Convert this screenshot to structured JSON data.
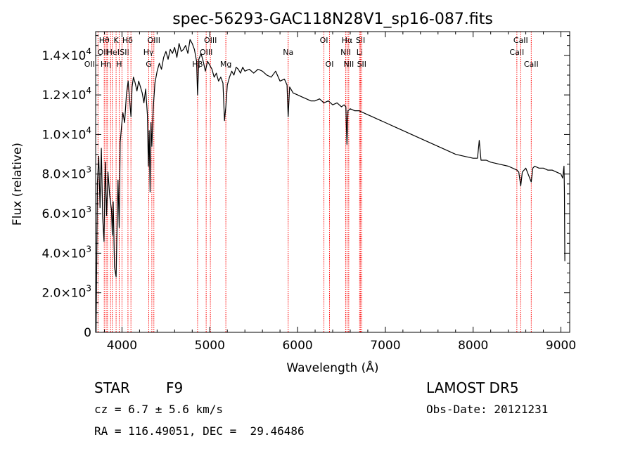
{
  "chart_data": {
    "type": "line",
    "title": "spec-56293-GAC118N28V1_sp16-087.fits",
    "xlabel": "Wavelength (Å)",
    "ylabel": "Flux (relative)",
    "xlim": [
      3700,
      9100
    ],
    "ylim": [
      0,
      15200
    ],
    "xticks": [
      {
        "value": 4000,
        "label": "4000"
      },
      {
        "value": 5000,
        "label": "5000"
      },
      {
        "value": 6000,
        "label": "6000"
      },
      {
        "value": 7000,
        "label": "7000"
      },
      {
        "value": 8000,
        "label": "8000"
      },
      {
        "value": 9000,
        "label": "9000"
      }
    ],
    "yticks": [
      {
        "value": 0,
        "mantissa": "0",
        "exponent": ""
      },
      {
        "value": 2000,
        "mantissa": "2.0×10",
        "exponent": "3"
      },
      {
        "value": 4000,
        "mantissa": "4.0×10",
        "exponent": "3"
      },
      {
        "value": 6000,
        "mantissa": "6.0×10",
        "exponent": "3"
      },
      {
        "value": 8000,
        "mantissa": "8.0×10",
        "exponent": "3"
      },
      {
        "value": 10000,
        "mantissa": "1.0×10",
        "exponent": "4"
      },
      {
        "value": 12000,
        "mantissa": "1.2×10",
        "exponent": "4"
      },
      {
        "value": 14000,
        "mantissa": "1.4×10",
        "exponent": "4"
      }
    ],
    "line_color": "#ff0000",
    "spectrum_color": "#000000",
    "grid": false,
    "series": [
      {
        "x": [
          3705,
          3712,
          3720,
          3735,
          3750,
          3765,
          3780,
          3795,
          3810,
          3825,
          3840,
          3860,
          3880,
          3890,
          3900,
          3915,
          3933,
          3945,
          3955,
          3968,
          3980,
          3995,
          4010,
          4030,
          4050,
          4070,
          4090,
          4102,
          4115,
          4130,
          4150,
          4170,
          4190,
          4210,
          4230,
          4250,
          4270,
          4290,
          4300,
          4310,
          4320,
          4330,
          4340,
          4355,
          4375,
          4400,
          4425,
          4450,
          4475,
          4500,
          4525,
          4550,
          4575,
          4600,
          4625,
          4650,
          4675,
          4700,
          4725,
          4750,
          4775,
          4800,
          4825,
          4850,
          4861,
          4875,
          4900,
          4925,
          4950,
          4975,
          5000,
          5025,
          5050,
          5075,
          5100,
          5125,
          5150,
          5168,
          5183,
          5200,
          5225,
          5250,
          5275,
          5300,
          5325,
          5350,
          5375,
          5400,
          5450,
          5500,
          5550,
          5600,
          5650,
          5700,
          5750,
          5800,
          5850,
          5880,
          5893,
          5910,
          5950,
          6000,
          6050,
          6100,
          6150,
          6200,
          6250,
          6300,
          6350,
          6400,
          6450,
          6500,
          6530,
          6550,
          6563,
          6575,
          6600,
          6650,
          6700,
          6750,
          6800,
          6850,
          6900,
          6950,
          7000,
          7100,
          7200,
          7300,
          7400,
          7500,
          7600,
          7700,
          7800,
          7900,
          8000,
          8050,
          8070,
          8090,
          8150,
          8200,
          8300,
          8400,
          8450,
          8498,
          8520,
          8542,
          8560,
          8600,
          8662,
          8680,
          8700,
          8750,
          8800,
          8850,
          8900,
          8950,
          9000,
          9020,
          9035,
          9040,
          9045
        ],
        "y": [
          0,
          3500,
          7600,
          8900,
          6300,
          9300,
          5800,
          4600,
          8600,
          5900,
          8100,
          6900,
          6200,
          4900,
          6600,
          3300,
          2800,
          5600,
          7700,
          5300,
          9600,
          10400,
          11100,
          10600,
          12000,
          12700,
          11600,
          10900,
          12400,
          12900,
          12600,
          12200,
          12700,
          12400,
          12100,
          11600,
          12300,
          11000,
          8400,
          10200,
          7100,
          10600,
          9400,
          11300,
          12600,
          13200,
          13600,
          13300,
          13900,
          14200,
          13800,
          14300,
          14100,
          14400,
          13900,
          14600,
          14200,
          14300,
          14500,
          14100,
          14800,
          14600,
          14300,
          13700,
          12000,
          13800,
          14100,
          13700,
          13200,
          13700,
          13500,
          13300,
          12900,
          13100,
          12700,
          12900,
          12600,
          10700,
          11400,
          12500,
          12900,
          13200,
          13000,
          13400,
          13300,
          13100,
          13400,
          13200,
          13300,
          13100,
          13300,
          13200,
          13000,
          12900,
          13200,
          12700,
          12800,
          12500,
          10900,
          12400,
          12100,
          12000,
          11900,
          11800,
          11700,
          11700,
          11800,
          11600,
          11700,
          11500,
          11600,
          11400,
          11500,
          11400,
          9500,
          11200,
          11300,
          11200,
          11200,
          11100,
          11000,
          10900,
          10800,
          10700,
          10600,
          10400,
          10200,
          10000,
          9800,
          9600,
          9400,
          9200,
          9000,
          8900,
          8800,
          8800,
          9700,
          8700,
          8700,
          8600,
          8500,
          8400,
          8300,
          8200,
          8100,
          7400,
          8100,
          8300,
          7600,
          8300,
          8400,
          8300,
          8300,
          8200,
          8200,
          8100,
          8000,
          7800,
          8400,
          7100,
          3600
        ]
      }
    ],
    "spectral_lines": [
      {
        "x": 3727,
        "label": "OII",
        "row": 2,
        "offset": -1
      },
      {
        "x": 3798,
        "label": "Hθ",
        "row": 0,
        "offset": 0
      },
      {
        "x": 3820,
        "label": "OII",
        "row": 1,
        "offset": -0.4
      },
      {
        "x": 3835,
        "label": "Hη",
        "row": 2,
        "offset": -0.2
      },
      {
        "x": 3870,
        "label": "HeI",
        "row": 1,
        "offset": 0.3
      },
      {
        "x": 3889,
        "label": "",
        "row": 0,
        "offset": 0
      },
      {
        "x": 3933,
        "label": "K",
        "row": 0,
        "offset": 0
      },
      {
        "x": 3968,
        "label": "H",
        "row": 2,
        "offset": 0
      },
      {
        "x": 4000,
        "label": "SII",
        "row": 1,
        "offset": 0.3
      },
      {
        "x": 4068,
        "label": "",
        "row": 0,
        "offset": 0
      },
      {
        "x": 4102,
        "label": "Hδ",
        "row": 0,
        "offset": -0.4
      },
      {
        "x": 4305,
        "label": "G",
        "row": 2,
        "offset": 0
      },
      {
        "x": 4340,
        "label": "Hγ",
        "row": 1,
        "offset": -0.4
      },
      {
        "x": 4363,
        "label": "OIII",
        "row": 0,
        "offset": 0
      },
      {
        "x": 4861,
        "label": "Hβ",
        "row": 2,
        "offset": 0
      },
      {
        "x": 4959,
        "label": "OIII",
        "row": 1,
        "offset": 0
      },
      {
        "x": 5007,
        "label": "OIII",
        "row": 0,
        "offset": 0
      },
      {
        "x": 5183,
        "label": "Mg",
        "row": 2,
        "offset": 0
      },
      {
        "x": 5893,
        "label": "Na",
        "row": 1,
        "offset": 0
      },
      {
        "x": 6300,
        "label": "OI",
        "row": 0,
        "offset": 0
      },
      {
        "x": 6364,
        "label": "OI",
        "row": 2,
        "offset": 0
      },
      {
        "x": 6548,
        "label": "NII",
        "row": 1,
        "offset": 0
      },
      {
        "x": 6563,
        "label": "Hα",
        "row": 0,
        "offset": 0
      },
      {
        "x": 6583,
        "label": "NII",
        "row": 2,
        "offset": 0
      },
      {
        "x": 6707,
        "label": "Li",
        "row": 1,
        "offset": 0
      },
      {
        "x": 6717,
        "label": "SII",
        "row": 0,
        "offset": 0
      },
      {
        "x": 6731,
        "label": "SII",
        "row": 2,
        "offset": 0
      },
      {
        "x": 8498,
        "label": "CaII",
        "row": 1,
        "offset": 0
      },
      {
        "x": 8542,
        "label": "CaII",
        "row": 0,
        "offset": 0
      },
      {
        "x": 8662,
        "label": "CaII",
        "row": 2,
        "offset": 0
      }
    ]
  },
  "info": {
    "object_type": "STAR",
    "subclass": "F9",
    "survey": "LAMOST DR5",
    "redshift": "cz = 6.7 ± 5.6 km/s",
    "obs_date": "Obs-Date: 20121231",
    "coords": "RA = 116.49051, DEC =  29.46486"
  }
}
